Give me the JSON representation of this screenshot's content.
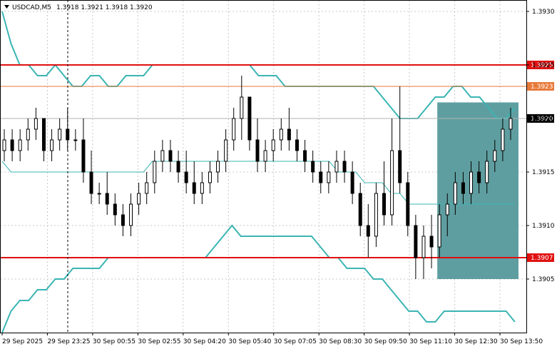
{
  "header": {
    "symbol_timeframe": "USDCAD,M5",
    "ohlc": "1.3918 1.3921 1.3918 1.3920"
  },
  "colors": {
    "background": "#ffffff",
    "candle": "#000000",
    "bollinger": "#3cb4b4",
    "support_resistance": "#e01010",
    "level_secondary": "#e87a3a",
    "zone_fill": "#5f9ea0",
    "grid": "#c8c8c8"
  },
  "chart_data": {
    "type": "candlestick",
    "symbol": "USDCAD",
    "timeframe": "M5",
    "ylim": [
      1.39,
      1.3931
    ],
    "y_ticks": [
      "1.3930",
      "1.3925",
      "1.3920",
      "1.3915",
      "1.3910",
      "1.3905"
    ],
    "x_ticks": [
      "29 Sep 2025",
      "29 Sep 23:25",
      "30 Sep 00:55",
      "30 Sep 02:55",
      "30 Sep 04:20",
      "30 Sep 05:40",
      "30 Sep 07:05",
      "30 Sep 08:30",
      "30 Sep 09:50",
      "30 Sep 11:10",
      "30 Sep 12:30",
      "30 Sep 13:50"
    ],
    "levels": [
      {
        "price": "1.3925",
        "kind": "resistance"
      },
      {
        "price": "1.3923",
        "kind": "level"
      },
      {
        "price": "1.3920",
        "kind": "current"
      },
      {
        "price": "1.3907",
        "kind": "support"
      }
    ],
    "zone": {
      "from_price": 1.3905,
      "to_price": 1.39215
    },
    "bollinger": {
      "upper": [
        1.393,
        1.3927,
        1.3925,
        1.3925,
        1.3924,
        1.3924,
        1.3925,
        1.3924,
        1.3923,
        1.3923,
        1.3924,
        1.3924,
        1.3923,
        1.3923,
        1.3924,
        1.3924,
        1.3924,
        1.3925,
        1.3925,
        1.3925,
        1.3925,
        1.3925,
        1.3925,
        1.3925,
        1.3925,
        1.3925,
        1.3925,
        1.3925,
        1.3925,
        1.3924,
        1.3924,
        1.3924,
        1.3923,
        1.3923,
        1.3923,
        1.3923,
        1.3923,
        1.3923,
        1.3923,
        1.3923,
        1.3923,
        1.3923,
        1.3923,
        1.3922,
        1.3921,
        1.392,
        1.392,
        1.392,
        1.3921,
        1.3922,
        1.3922,
        1.3923,
        1.3923,
        1.3922,
        1.3922,
        1.3921,
        1.392,
        1.392,
        1.3921
      ],
      "middle": [
        1.3916,
        1.3915,
        1.3915,
        1.3915,
        1.3915,
        1.3915,
        1.3915,
        1.3915,
        1.3915,
        1.3915,
        1.3915,
        1.3915,
        1.3915,
        1.3915,
        1.3915,
        1.3915,
        1.3915,
        1.3916,
        1.3916,
        1.3916,
        1.3916,
        1.3916,
        1.3916,
        1.3916,
        1.3916,
        1.3916,
        1.3916,
        1.3916,
        1.3916,
        1.3916,
        1.3916,
        1.3916,
        1.3916,
        1.3916,
        1.3916,
        1.3916,
        1.3916,
        1.3916,
        1.3915,
        1.3915,
        1.3915,
        1.3914,
        1.3914,
        1.3914,
        1.3913,
        1.3913,
        1.3912,
        1.3912,
        1.3912,
        1.3912,
        1.3912,
        1.3912,
        1.3912,
        1.3912,
        1.3912,
        1.3912,
        1.3912,
        1.3912,
        1.3912
      ],
      "lower": [
        1.39,
        1.3902,
        1.3903,
        1.3903,
        1.3904,
        1.3904,
        1.3905,
        1.3905,
        1.3906,
        1.3906,
        1.3906,
        1.3906,
        1.3907,
        1.3907,
        1.3907,
        1.3907,
        1.3907,
        1.3907,
        1.3907,
        1.3907,
        1.3907,
        1.3907,
        1.3907,
        1.3907,
        1.3908,
        1.3909,
        1.391,
        1.3909,
        1.3909,
        1.3909,
        1.3909,
        1.3909,
        1.3909,
        1.3909,
        1.3909,
        1.3909,
        1.3908,
        1.3907,
        1.3907,
        1.3906,
        1.3906,
        1.3906,
        1.3905,
        1.3905,
        1.3904,
        1.3903,
        1.3902,
        1.3902,
        1.3901,
        1.3901,
        1.3902,
        1.3902,
        1.3902,
        1.3902,
        1.3902,
        1.3902,
        1.3902,
        1.3902,
        1.3901
      ]
    },
    "candles": [
      [
        1.3917,
        1.3919,
        1.3916,
        1.3918
      ],
      [
        1.3918,
        1.3919,
        1.3916,
        1.3917
      ],
      [
        1.3917,
        1.3919,
        1.3916,
        1.3918
      ],
      [
        1.3918,
        1.392,
        1.3917,
        1.3919
      ],
      [
        1.3919,
        1.3921,
        1.3918,
        1.392
      ],
      [
        1.392,
        1.392,
        1.3916,
        1.3917
      ],
      [
        1.3917,
        1.3919,
        1.3916,
        1.3918
      ],
      [
        1.3918,
        1.392,
        1.3917,
        1.3919
      ],
      [
        1.3919,
        1.3921,
        1.3917,
        1.3918
      ],
      [
        1.3918,
        1.3919,
        1.3917,
        1.3918
      ],
      [
        1.3918,
        1.392,
        1.3914,
        1.3915
      ],
      [
        1.3915,
        1.3917,
        1.3912,
        1.3913
      ],
      [
        1.3913,
        1.3914,
        1.3912,
        1.3913
      ],
      [
        1.3913,
        1.3915,
        1.3911,
        1.3912
      ],
      [
        1.3912,
        1.3913,
        1.391,
        1.3911
      ],
      [
        1.3911,
        1.3912,
        1.3909,
        1.391
      ],
      [
        1.391,
        1.3913,
        1.3909,
        1.3912
      ],
      [
        1.3912,
        1.3914,
        1.3911,
        1.3913
      ],
      [
        1.3913,
        1.3915,
        1.3912,
        1.3914
      ],
      [
        1.3914,
        1.3917,
        1.3913,
        1.3916
      ],
      [
        1.3916,
        1.3918,
        1.3915,
        1.3917
      ],
      [
        1.3917,
        1.3918,
        1.3915,
        1.3916
      ],
      [
        1.3916,
        1.3917,
        1.3914,
        1.3915
      ],
      [
        1.3915,
        1.3917,
        1.3913,
        1.3914
      ],
      [
        1.3914,
        1.3916,
        1.3912,
        1.3913
      ],
      [
        1.3913,
        1.3915,
        1.3912,
        1.3914
      ],
      [
        1.3914,
        1.3916,
        1.3913,
        1.3915
      ],
      [
        1.3915,
        1.3917,
        1.3914,
        1.3916
      ],
      [
        1.3916,
        1.3919,
        1.3915,
        1.3918
      ],
      [
        1.3918,
        1.3921,
        1.3917,
        1.392
      ],
      [
        1.392,
        1.3924,
        1.3918,
        1.3922
      ],
      [
        1.3922,
        1.3922,
        1.3917,
        1.3918
      ],
      [
        1.3918,
        1.392,
        1.3915,
        1.3916
      ],
      [
        1.3916,
        1.3918,
        1.3915,
        1.3917
      ],
      [
        1.3917,
        1.3919,
        1.3916,
        1.3918
      ],
      [
        1.3918,
        1.392,
        1.3917,
        1.3919
      ],
      [
        1.3919,
        1.3921,
        1.3917,
        1.3918
      ],
      [
        1.3918,
        1.3919,
        1.3916,
        1.3917
      ],
      [
        1.3917,
        1.3918,
        1.3915,
        1.3916
      ],
      [
        1.3916,
        1.3917,
        1.3914,
        1.3915
      ],
      [
        1.3915,
        1.3916,
        1.3913,
        1.3914
      ],
      [
        1.3914,
        1.3916,
        1.3913,
        1.3915
      ],
      [
        1.3915,
        1.3917,
        1.3914,
        1.3916
      ],
      [
        1.3916,
        1.3917,
        1.3914,
        1.3915
      ],
      [
        1.3915,
        1.3916,
        1.3912,
        1.3913
      ],
      [
        1.3913,
        1.3914,
        1.3909,
        1.391
      ],
      [
        1.391,
        1.3912,
        1.3907,
        1.3909
      ],
      [
        1.3909,
        1.3914,
        1.3908,
        1.3913
      ],
      [
        1.3913,
        1.3916,
        1.391,
        1.3911
      ],
      [
        1.3911,
        1.392,
        1.391,
        1.3917
      ],
      [
        1.3917,
        1.3923,
        1.3913,
        1.3914
      ],
      [
        1.3914,
        1.3915,
        1.3909,
        1.391
      ],
      [
        1.391,
        1.3911,
        1.3905,
        1.3907
      ],
      [
        1.3907,
        1.391,
        1.3905,
        1.3909
      ],
      [
        1.3909,
        1.3911,
        1.3906,
        1.3908
      ],
      [
        1.3908,
        1.3912,
        1.3907,
        1.3911
      ],
      [
        1.3911,
        1.3913,
        1.3909,
        1.3912
      ],
      [
        1.3912,
        1.3915,
        1.3911,
        1.3914
      ],
      [
        1.3914,
        1.3915,
        1.3912,
        1.3913
      ],
      [
        1.3913,
        1.3916,
        1.3912,
        1.3915
      ],
      [
        1.3915,
        1.3916,
        1.3913,
        1.3914
      ],
      [
        1.3914,
        1.3917,
        1.3913,
        1.3916
      ],
      [
        1.3916,
        1.3918,
        1.3915,
        1.3917
      ],
      [
        1.3917,
        1.392,
        1.3916,
        1.3919
      ],
      [
        1.3919,
        1.3921,
        1.3918,
        1.392
      ]
    ]
  }
}
